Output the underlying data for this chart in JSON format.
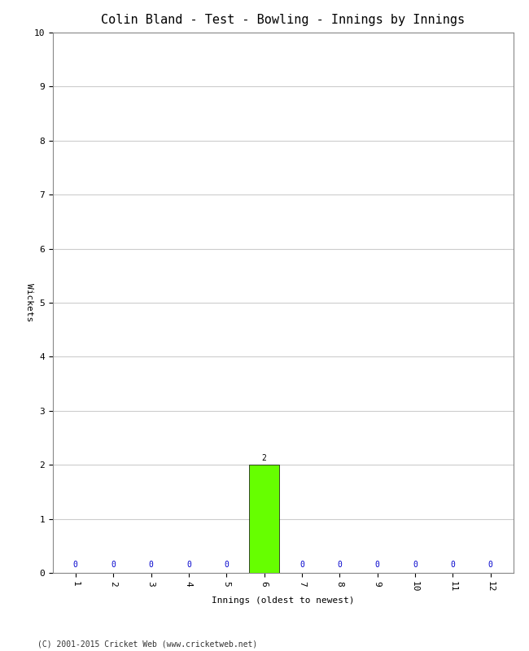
{
  "title": "Colin Bland - Test - Bowling - Innings by Innings",
  "xlabel": "Innings (oldest to newest)",
  "ylabel": "Wickets",
  "innings": [
    1,
    2,
    3,
    4,
    5,
    6,
    7,
    8,
    9,
    10,
    11,
    12
  ],
  "wickets": [
    0,
    0,
    0,
    0,
    0,
    2,
    0,
    0,
    0,
    0,
    0,
    0
  ],
  "bar_color": "#66ff00",
  "bar_edge_color": "#000000",
  "zero_color": "#0000cc",
  "ylim": [
    0,
    10
  ],
  "yticks": [
    0,
    1,
    2,
    3,
    4,
    5,
    6,
    7,
    8,
    9,
    10
  ],
  "xticks": [
    1,
    2,
    3,
    4,
    5,
    6,
    7,
    8,
    9,
    10,
    11,
    12
  ],
  "background_color": "#ffffff",
  "grid_color": "#cccccc",
  "footer": "(C) 2001-2015 Cricket Web (www.cricketweb.net)",
  "title_fontsize": 11,
  "label_fontsize": 8,
  "tick_fontsize": 8,
  "annotation_fontsize": 7,
  "footer_fontsize": 7
}
